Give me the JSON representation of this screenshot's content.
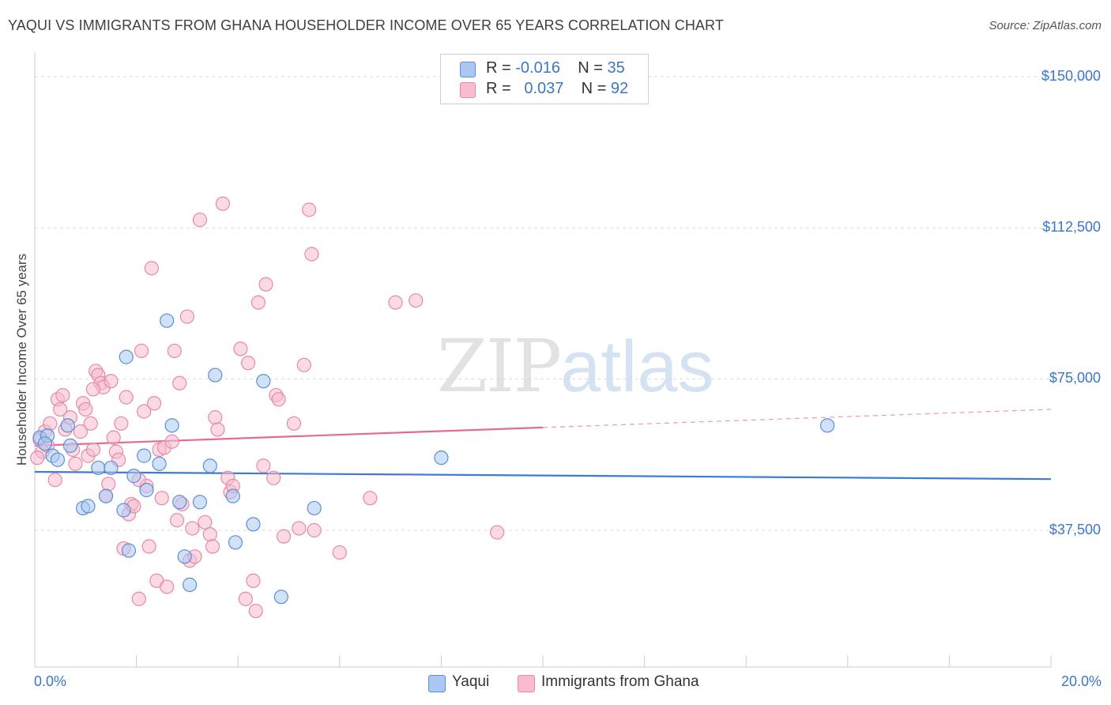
{
  "title": "YAQUI VS IMMIGRANTS FROM GHANA HOUSEHOLDER INCOME OVER 65 YEARS CORRELATION CHART",
  "source": "Source: ZipAtlas.com",
  "watermark": {
    "zip": "ZIP",
    "atlas": "atlas"
  },
  "legend": {
    "r_label": "R =",
    "n_label": "N =",
    "rows": [
      {
        "name": "Yaqui",
        "r": "-0.016",
        "n": "35"
      },
      {
        "name": "Immigrants from Ghana",
        "r": "0.037",
        "n": "92"
      }
    ]
  },
  "chart_data": {
    "type": "scatter",
    "title": "YAQUI VS IMMIGRANTS FROM GHANA HOUSEHOLDER INCOME OVER 65 YEARS CORRELATION CHART",
    "xlabel": "",
    "ylabel": "Householder Income Over 65 years",
    "xlim": [
      0,
      20
    ],
    "ylim": [
      0,
      155000
    ],
    "x_tick_labels": [
      "0.0%",
      "20.0%"
    ],
    "y_tick_labels": [
      "$150,000",
      "$112,500",
      "$75,000",
      "$37,500"
    ],
    "y_tick_values": [
      150000,
      112500,
      75000,
      37500
    ],
    "colors": {
      "yaqui_fill": "#a9c8f2",
      "yaqui_stroke": "#5b8fd6",
      "yaqui_line": "#3a7bd5",
      "ghana_fill": "#f7bccd",
      "ghana_stroke": "#e58aa6",
      "ghana_line": "#e46c93",
      "grid": "#d9d9d9",
      "axis": "#cccccc"
    },
    "series": [
      {
        "name": "Yaqui",
        "r": -0.016,
        "n": 35,
        "trend": {
          "x0": 0,
          "y0": 52000,
          "x1": 20,
          "y1": 50200,
          "dashed_from": null
        },
        "points": [
          [
            0.1,
            60500
          ],
          [
            0.25,
            61000
          ],
          [
            0.35,
            56000
          ],
          [
            0.45,
            55000
          ],
          [
            0.65,
            63500
          ],
          [
            0.7,
            58500
          ],
          [
            0.95,
            43000
          ],
          [
            1.05,
            43500
          ],
          [
            1.25,
            53000
          ],
          [
            1.4,
            46000
          ],
          [
            1.5,
            53000
          ],
          [
            1.75,
            42500
          ],
          [
            1.8,
            80500
          ],
          [
            1.85,
            32500
          ],
          [
            1.95,
            51000
          ],
          [
            2.15,
            56000
          ],
          [
            2.2,
            47500
          ],
          [
            2.45,
            54000
          ],
          [
            2.6,
            89500
          ],
          [
            2.7,
            63500
          ],
          [
            2.85,
            44500
          ],
          [
            2.95,
            31000
          ],
          [
            3.05,
            24000
          ],
          [
            3.25,
            44500
          ],
          [
            3.45,
            53500
          ],
          [
            3.55,
            76000
          ],
          [
            3.9,
            46000
          ],
          [
            3.95,
            34500
          ],
          [
            4.3,
            39000
          ],
          [
            4.5,
            74500
          ],
          [
            4.85,
            21000
          ],
          [
            5.5,
            43000
          ],
          [
            8.0,
            55500
          ],
          [
            15.6,
            63500
          ],
          [
            0.2,
            59000
          ]
        ]
      },
      {
        "name": "Immigrants from Ghana",
        "r": 0.037,
        "n": 92,
        "trend": {
          "x0": 0,
          "y0": 58500,
          "x1": 20,
          "y1": 67500,
          "dashed_from": 10
        },
        "points": [
          [
            0.1,
            60000
          ],
          [
            0.15,
            57000
          ],
          [
            0.2,
            62000
          ],
          [
            0.3,
            64000
          ],
          [
            0.4,
            50000
          ],
          [
            0.45,
            70000
          ],
          [
            0.5,
            67500
          ],
          [
            0.55,
            71000
          ],
          [
            0.6,
            62500
          ],
          [
            0.7,
            65500
          ],
          [
            0.75,
            57500
          ],
          [
            0.8,
            54000
          ],
          [
            0.9,
            62000
          ],
          [
            0.95,
            69000
          ],
          [
            1.0,
            67500
          ],
          [
            1.05,
            56000
          ],
          [
            1.1,
            64000
          ],
          [
            1.15,
            57500
          ],
          [
            1.2,
            77000
          ],
          [
            1.25,
            76000
          ],
          [
            1.3,
            74000
          ],
          [
            1.35,
            73000
          ],
          [
            1.4,
            46000
          ],
          [
            1.45,
            49000
          ],
          [
            1.5,
            74500
          ],
          [
            1.55,
            60500
          ],
          [
            1.6,
            57000
          ],
          [
            1.7,
            64000
          ],
          [
            1.75,
            33000
          ],
          [
            1.8,
            70500
          ],
          [
            1.85,
            41500
          ],
          [
            1.9,
            44000
          ],
          [
            1.95,
            43500
          ],
          [
            2.05,
            20500
          ],
          [
            2.1,
            82000
          ],
          [
            2.15,
            67000
          ],
          [
            2.2,
            48500
          ],
          [
            2.25,
            33500
          ],
          [
            2.3,
            102500
          ],
          [
            2.35,
            69000
          ],
          [
            2.4,
            25000
          ],
          [
            2.45,
            57500
          ],
          [
            2.5,
            45500
          ],
          [
            2.55,
            58000
          ],
          [
            2.6,
            23500
          ],
          [
            2.7,
            59500
          ],
          [
            2.75,
            82000
          ],
          [
            2.85,
            74000
          ],
          [
            2.9,
            44000
          ],
          [
            3.0,
            90500
          ],
          [
            3.05,
            30000
          ],
          [
            3.1,
            38000
          ],
          [
            3.15,
            31000
          ],
          [
            3.25,
            114500
          ],
          [
            3.35,
            39500
          ],
          [
            3.45,
            36500
          ],
          [
            3.55,
            65500
          ],
          [
            3.6,
            62500
          ],
          [
            3.7,
            118500
          ],
          [
            3.8,
            50500
          ],
          [
            3.85,
            47000
          ],
          [
            3.9,
            48500
          ],
          [
            4.05,
            82500
          ],
          [
            4.15,
            20500
          ],
          [
            4.2,
            79000
          ],
          [
            4.3,
            25000
          ],
          [
            4.35,
            17500
          ],
          [
            4.4,
            94000
          ],
          [
            4.5,
            53500
          ],
          [
            4.55,
            98500
          ],
          [
            4.7,
            50500
          ],
          [
            4.75,
            71000
          ],
          [
            4.8,
            70000
          ],
          [
            4.9,
            36000
          ],
          [
            5.1,
            64000
          ],
          [
            5.2,
            38000
          ],
          [
            5.3,
            78500
          ],
          [
            5.4,
            117000
          ],
          [
            5.45,
            106000
          ],
          [
            5.5,
            37500
          ],
          [
            6.0,
            32000
          ],
          [
            6.6,
            45500
          ],
          [
            7.1,
            94000
          ],
          [
            7.5,
            94500
          ],
          [
            9.1,
            37000
          ],
          [
            0.05,
            55500
          ],
          [
            0.25,
            58500
          ],
          [
            1.15,
            72500
          ],
          [
            1.65,
            55000
          ],
          [
            2.05,
            50000
          ],
          [
            2.8,
            40000
          ],
          [
            3.5,
            33500
          ]
        ]
      }
    ]
  },
  "axes": {
    "y_axis_title": "Householder Income Over 65 years",
    "x_left": "0.0%",
    "x_right": "20.0%",
    "y_ticks": [
      "$150,000",
      "$112,500",
      "$75,000",
      "$37,500"
    ]
  }
}
